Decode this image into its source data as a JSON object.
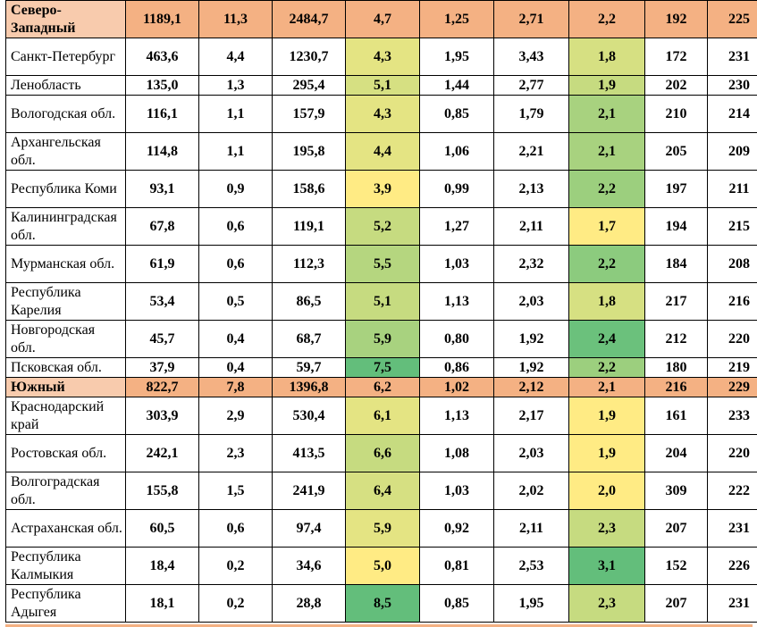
{
  "rows": [
    {
      "type": "region",
      "name": "Северо-Западный",
      "v": [
        "1189,1",
        "11,3",
        "2484,7",
        "4,7",
        "1,25",
        "2,71",
        "2,2",
        "192",
        "225"
      ],
      "c5": "#ffeb84",
      "c8": "#b5d67f"
    },
    {
      "type": "sub",
      "name": "Санкт-Петербург",
      "v": [
        "463,6",
        "4,4",
        "1230,7",
        "4,3",
        "1,95",
        "3,43",
        "1,8",
        "172",
        "231"
      ],
      "c5": "#e4e483",
      "c8": "#d6e082"
    },
    {
      "type": "sub",
      "name": "Ленобласть",
      "v": [
        "135,0",
        "1,3",
        "295,4",
        "5,1",
        "1,44",
        "2,77",
        "1,9",
        "202",
        "230"
      ],
      "c5": "#d6e082",
      "c8": "#c6db80"
    },
    {
      "type": "sub",
      "name": "Вологодская обл.",
      "v": [
        "116,1",
        "1,1",
        "157,9",
        "4,3",
        "0,85",
        "1,79",
        "2,1",
        "210",
        "214"
      ],
      "c5": "#e4e483",
      "c8": "#a8d27f"
    },
    {
      "type": "sub",
      "name": "Архангельская обл.",
      "v": [
        "114,8",
        "1,1",
        "195,8",
        "4,4",
        "1,06",
        "2,21",
        "2,1",
        "205",
        "209"
      ],
      "c5": "#e4e483",
      "c8": "#a8d27f"
    },
    {
      "type": "sub",
      "name": "Республика Коми",
      "v": [
        "93,1",
        "0,9",
        "158,6",
        "3,9",
        "0,99",
        "2,13",
        "2,2",
        "197",
        "211"
      ],
      "c5": "#ffeb84",
      "c8": "#9ccf7e"
    },
    {
      "type": "sub",
      "name": "Калининградская обл.",
      "v": [
        "67,8",
        "0,6",
        "119,1",
        "5,2",
        "1,27",
        "2,11",
        "1,7",
        "194",
        "215"
      ],
      "c5": "#c6db80",
      "c8": "#ffeb84"
    },
    {
      "type": "sub",
      "name": "Мурманская обл.",
      "v": [
        "61,9",
        "0,6",
        "112,3",
        "5,5",
        "1,03",
        "2,32",
        "2,2",
        "184",
        "208"
      ],
      "c5": "#b5d67f",
      "c8": "#8ccb7e"
    },
    {
      "type": "sub",
      "name": "Республика Карелия",
      "v": [
        "53,4",
        "0,5",
        "86,5",
        "5,1",
        "1,13",
        "2,03",
        "1,8",
        "217",
        "216"
      ],
      "c5": "#c6db80",
      "c8": "#d6e082"
    },
    {
      "type": "sub",
      "name": "Новгородская обл.",
      "v": [
        "45,7",
        "0,4",
        "68,7",
        "5,9",
        "0,80",
        "1,92",
        "2,4",
        "212",
        "220"
      ],
      "c5": "#a8d27f",
      "c8": "#6bc17c"
    },
    {
      "type": "sub",
      "name": "Псковская обл.",
      "v": [
        "37,9",
        "0,4",
        "59,7",
        "7,5",
        "0,86",
        "1,92",
        "2,2",
        "180",
        "219"
      ],
      "c5": "#63be7b",
      "c8": "#9ccf7e"
    },
    {
      "type": "region",
      "name": "Южный",
      "v": [
        "822,7",
        "7,8",
        "1396,8",
        "6,2",
        "1,02",
        "2,12",
        "2,1",
        "216",
        "229"
      ],
      "c5": "#f4b183",
      "c8": "#f4b183"
    },
    {
      "type": "sub",
      "name": "Краснодарский край",
      "v": [
        "303,9",
        "2,9",
        "530,4",
        "6,1",
        "1,13",
        "2,17",
        "1,9",
        "161",
        "233"
      ],
      "c5": "#e4e483",
      "c8": "#ffeb84"
    },
    {
      "type": "sub",
      "name": "Ростовская обл.",
      "v": [
        "242,1",
        "2,3",
        "413,5",
        "6,6",
        "1,08",
        "2,03",
        "1,9",
        "204",
        "220"
      ],
      "c5": "#c6db80",
      "c8": "#ffeb84"
    },
    {
      "type": "sub",
      "name": "Волгоградская обл.",
      "v": [
        "155,8",
        "1,5",
        "241,9",
        "6,4",
        "1,03",
        "2,02",
        "2,0",
        "309",
        "222"
      ],
      "c5": "#d6e082",
      "c8": "#ffeb84"
    },
    {
      "type": "sub",
      "name": "Астраханская обл.",
      "v": [
        "60,5",
        "0,6",
        "97,4",
        "5,9",
        "0,92",
        "2,11",
        "2,3",
        "207",
        "231"
      ],
      "c5": "#e4e483",
      "c8": "#c6db80"
    },
    {
      "type": "sub",
      "name": "Республика Калмыкия",
      "v": [
        "18,4",
        "0,2",
        "34,6",
        "5,0",
        "0,81",
        "2,53",
        "3,1",
        "152",
        "226"
      ],
      "c5": "#ffeb84",
      "c8": "#63be7b"
    },
    {
      "type": "sub",
      "name": "Республика Адыгея",
      "v": [
        "18,1",
        "0,2",
        "28,8",
        "8,5",
        "0,85",
        "1,95",
        "2,3",
        "207",
        "231"
      ],
      "c5": "#63be7b",
      "c8": "#c6db80"
    }
  ]
}
